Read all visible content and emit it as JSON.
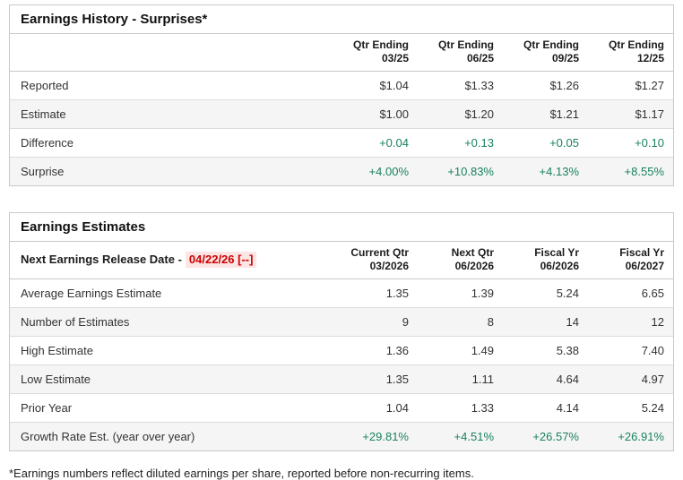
{
  "colors": {
    "positive_green": "#1a8260",
    "alert_red": "#cc0000",
    "alert_red_background": "#fbe5e5",
    "row_stripe": "#f5f5f5",
    "table_border": "#c9c9c9"
  },
  "earnings_history": {
    "title": "Earnings History - Surprises*",
    "columns": [
      {
        "line1": "Qtr Ending",
        "line2": "03/25"
      },
      {
        "line1": "Qtr Ending",
        "line2": "06/25"
      },
      {
        "line1": "Qtr Ending",
        "line2": "09/25"
      },
      {
        "line1": "Qtr Ending",
        "line2": "12/25"
      }
    ],
    "rows": [
      {
        "label": "Reported",
        "values": [
          "$1.04",
          "$1.33",
          "$1.26",
          "$1.27"
        ]
      },
      {
        "label": "Estimate",
        "values": [
          "$1.00",
          "$1.20",
          "$1.21",
          "$1.17"
        ]
      },
      {
        "label": "Difference",
        "values": [
          "+0.04",
          "+0.13",
          "+0.05",
          "+0.10"
        ]
      },
      {
        "label": "Surprise",
        "values": [
          "+4.00%",
          "+10.83%",
          "+4.13%",
          "+8.55%"
        ]
      }
    ]
  },
  "earnings_estimates": {
    "title": "Earnings Estimates",
    "release_date_label": "Next Earnings Release Date -",
    "release_date_value": "04/22/26 [--]",
    "columns": [
      {
        "line1": "Current Qtr",
        "line2": "03/2026"
      },
      {
        "line1": "Next Qtr",
        "line2": "06/2026"
      },
      {
        "line1": "Fiscal Yr",
        "line2": "06/2026"
      },
      {
        "line1": "Fiscal Yr",
        "line2": "06/2027"
      }
    ],
    "rows": [
      {
        "label": "Average Earnings Estimate",
        "values": [
          "1.35",
          "1.39",
          "5.24",
          "6.65"
        ]
      },
      {
        "label": "Number of Estimates",
        "values": [
          "9",
          "8",
          "14",
          "12"
        ]
      },
      {
        "label": "High Estimate",
        "values": [
          "1.36",
          "1.49",
          "5.38",
          "7.40"
        ]
      },
      {
        "label": "Low Estimate",
        "values": [
          "1.35",
          "1.11",
          "4.64",
          "4.97"
        ]
      },
      {
        "label": "Prior Year",
        "values": [
          "1.04",
          "1.33",
          "4.14",
          "5.24"
        ]
      },
      {
        "label": "Growth Rate Est. (year over year)",
        "values": [
          "+29.81%",
          "+4.51%",
          "+26.57%",
          "+26.91%"
        ]
      }
    ]
  },
  "footnote": "*Earnings numbers reflect diluted earnings per share, reported before non-recurring items."
}
